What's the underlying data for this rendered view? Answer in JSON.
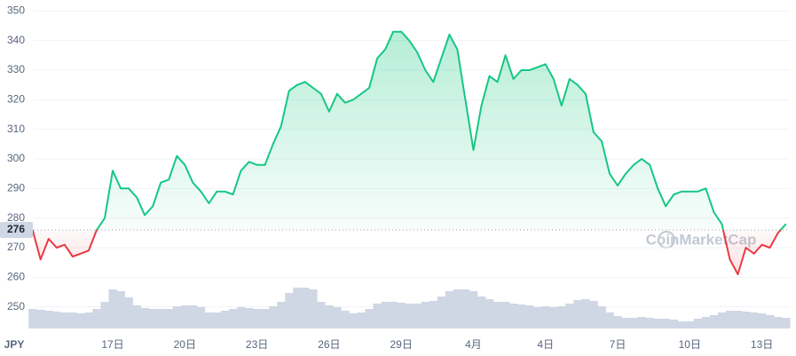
{
  "chart_data": {
    "type": "line",
    "currency": "JPY",
    "watermark": "CoinMarketCap",
    "baseline": 276,
    "color": "#16c784",
    "down_color": "#ea3943",
    "volume_color": "#cfd6e4",
    "grid": true,
    "ylim": [
      243,
      351
    ],
    "yticks": [
      250,
      260,
      270,
      280,
      290,
      300,
      310,
      320,
      330,
      340,
      350
    ],
    "categories": [
      null,
      null,
      null,
      null,
      null,
      null,
      null,
      null,
      null,
      null,
      "17日",
      null,
      null,
      null,
      null,
      null,
      null,
      null,
      null,
      "20日",
      null,
      null,
      null,
      null,
      null,
      null,
      null,
      null,
      "23日",
      null,
      null,
      null,
      null,
      null,
      null,
      null,
      null,
      "26日",
      null,
      null,
      null,
      null,
      null,
      null,
      null,
      null,
      "29日",
      null,
      null,
      null,
      null,
      null,
      null,
      null,
      null,
      "4月",
      null,
      null,
      null,
      null,
      null,
      null,
      null,
      null,
      "4日",
      null,
      null,
      null,
      null,
      null,
      null,
      null,
      null,
      "7日",
      null,
      null,
      null,
      null,
      null,
      null,
      null,
      null,
      "10日",
      null,
      null,
      null,
      null,
      null,
      null,
      null,
      null,
      "13日",
      null,
      null,
      null
    ],
    "values": [
      276,
      266,
      273,
      270,
      271,
      267,
      268,
      269,
      276,
      280,
      296,
      290,
      290,
      287,
      281,
      284,
      292,
      293,
      301,
      298,
      292,
      289,
      285,
      289,
      289,
      288,
      296,
      299,
      298,
      298,
      305,
      311,
      323,
      325,
      326,
      324,
      322,
      316,
      322,
      319,
      320,
      322,
      324,
      334,
      337,
      343,
      343,
      340,
      336,
      330,
      326,
      334,
      342,
      337,
      320,
      303,
      318,
      328,
      326,
      335,
      327,
      330,
      330,
      331,
      332,
      327,
      318,
      327,
      325,
      322,
      309,
      306,
      295,
      291,
      295,
      298,
      300,
      298,
      290,
      284,
      288,
      289,
      289,
      289,
      290,
      282,
      278,
      266,
      261,
      270,
      268,
      271,
      270,
      275,
      278
    ],
    "volume": [
      22,
      21,
      20,
      19,
      18,
      18,
      17,
      18,
      22,
      30,
      44,
      42,
      35,
      26,
      23,
      22,
      22,
      22,
      25,
      26,
      26,
      24,
      18,
      18,
      20,
      22,
      24,
      23,
      22,
      22,
      25,
      30,
      40,
      46,
      46,
      44,
      30,
      26,
      24,
      20,
      17,
      18,
      22,
      28,
      30,
      30,
      29,
      28,
      28,
      30,
      31,
      36,
      42,
      44,
      44,
      42,
      36,
      33,
      30,
      30,
      28,
      27,
      26,
      24,
      25,
      24,
      25,
      28,
      32,
      33,
      31,
      25,
      18,
      14,
      12,
      12,
      13,
      12,
      11,
      11,
      10,
      8,
      8,
      11,
      13,
      15,
      18,
      20,
      20,
      19,
      18,
      17,
      15,
      13,
      12
    ]
  }
}
